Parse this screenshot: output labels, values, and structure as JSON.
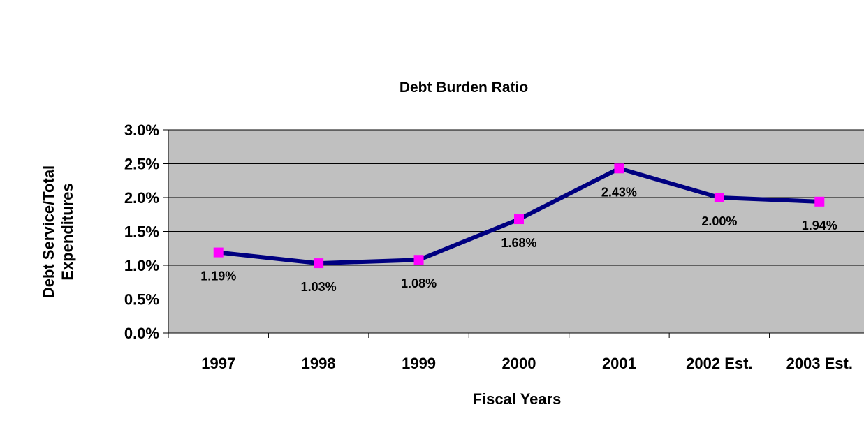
{
  "chart_data": {
    "type": "line",
    "title": "Debt Burden Ratio",
    "xlabel": "Fiscal Years",
    "ylabel_lines": [
      "Debt Service/Total",
      "Expenditures"
    ],
    "categories": [
      "1997",
      "1998",
      "1999",
      "2000",
      "2001",
      "2002 Est.",
      "2003 Est."
    ],
    "series": [
      {
        "values": [
          1.19,
          1.03,
          1.08,
          1.68,
          2.43,
          2.0,
          1.94
        ],
        "labels": [
          "1.19%",
          "1.03%",
          "1.08%",
          "1.68%",
          "2.43%",
          "2.00%",
          "1.94%"
        ]
      }
    ],
    "y_ticks": [
      "0.0%",
      "0.5%",
      "1.0%",
      "1.5%",
      "2.0%",
      "2.5%",
      "3.0%"
    ],
    "ylim": [
      0,
      3
    ],
    "grid": true,
    "legend": "none",
    "colors": {
      "plot_area": "#c0c0c0",
      "line": "#000080",
      "marker": "#ff00ff"
    }
  }
}
